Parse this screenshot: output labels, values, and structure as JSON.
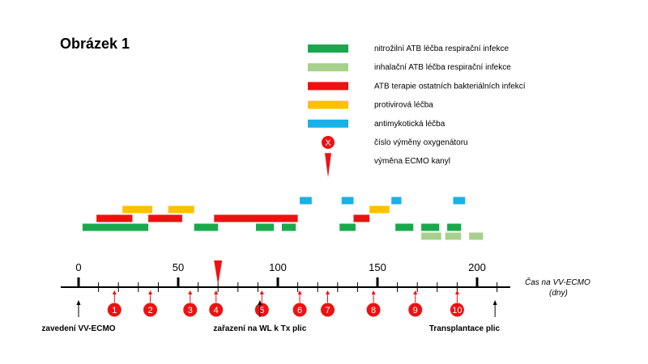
{
  "title": "Obrázek 1",
  "colors": {
    "nitro": "#1aa84c",
    "inhal": "#a8d08d",
    "atb_other": "#ee1111",
    "antiviral": "#ffc000",
    "antifungal": "#1ab0e8",
    "marker": "#ee1111"
  },
  "legend": [
    {
      "kind": "bar",
      "color_key": "nitro",
      "label": "nitrožilní ATB léčba respirační infekce"
    },
    {
      "kind": "bar",
      "color_key": "inhal",
      "label": "inhalační ATB léčba respirační infekce"
    },
    {
      "kind": "bar",
      "color_key": "atb_other",
      "label": "ATB terapie ostatních bakteriálních infekcí"
    },
    {
      "kind": "bar",
      "color_key": "antiviral",
      "label": "protivirová léčba"
    },
    {
      "kind": "bar",
      "color_key": "antifungal",
      "label": "antimykotická léčba"
    },
    {
      "kind": "circle",
      "color_key": "marker",
      "symbol": "X",
      "label": "číslo výměny oxygenátoru"
    },
    {
      "kind": "triangle",
      "color_key": "marker",
      "label": "výměna ECMO kanyl"
    }
  ],
  "axis": {
    "label_line1": "Čas na VV-ECMO",
    "label_line2": "(dny)",
    "min": -10,
    "max": 215,
    "major_ticks": [
      0,
      50,
      100,
      150,
      200
    ],
    "minor_step": 10
  },
  "chart_data": {
    "type": "timeline",
    "treatments": [
      {
        "color_key": "antifungal",
        "start": 111,
        "end": 117
      },
      {
        "color_key": "antifungal",
        "start": 132,
        "end": 138
      },
      {
        "color_key": "antifungal",
        "start": 157,
        "end": 162
      },
      {
        "color_key": "antifungal",
        "start": 188,
        "end": 194
      },
      {
        "color_key": "antiviral",
        "start": 22,
        "end": 37
      },
      {
        "color_key": "antiviral",
        "start": 45,
        "end": 58
      },
      {
        "color_key": "antiviral",
        "start": 146,
        "end": 156
      },
      {
        "color_key": "atb_other",
        "start": 9,
        "end": 27
      },
      {
        "color_key": "atb_other",
        "start": 35,
        "end": 52
      },
      {
        "color_key": "atb_other",
        "start": 68,
        "end": 110
      },
      {
        "color_key": "atb_other",
        "start": 138,
        "end": 146
      },
      {
        "color_key": "nitro",
        "start": 2,
        "end": 35
      },
      {
        "color_key": "nitro",
        "start": 58,
        "end": 70
      },
      {
        "color_key": "nitro",
        "start": 89,
        "end": 98
      },
      {
        "color_key": "nitro",
        "start": 102,
        "end": 109
      },
      {
        "color_key": "nitro",
        "start": 131,
        "end": 139
      },
      {
        "color_key": "nitro",
        "start": 159,
        "end": 168
      },
      {
        "color_key": "nitro",
        "start": 172,
        "end": 181
      },
      {
        "color_key": "nitro",
        "start": 185,
        "end": 192
      },
      {
        "color_key": "inhal",
        "start": 172,
        "end": 182
      },
      {
        "color_key": "inhal",
        "start": 184,
        "end": 192
      },
      {
        "color_key": "inhal",
        "start": 196,
        "end": 203
      }
    ],
    "oxygenator_changes": [
      {
        "num": "1",
        "day": 18
      },
      {
        "num": "2",
        "day": 36
      },
      {
        "num": "3",
        "day": 56
      },
      {
        "num": "4",
        "day": 69
      },
      {
        "num": "5",
        "day": 92
      },
      {
        "num": "6",
        "day": 111
      },
      {
        "num": "7",
        "day": 125
      },
      {
        "num": "8",
        "day": 148
      },
      {
        "num": "9",
        "day": 169
      },
      {
        "num": "10",
        "day": 190
      }
    ],
    "cannula_changes": [
      70
    ],
    "events": [
      {
        "day": 0,
        "label": "zavedení VV-ECMO",
        "anchor": "middle"
      },
      {
        "day": 91,
        "label": "zařazení na WL k Tx plic",
        "anchor": "middle"
      },
      {
        "day": 209,
        "label": "Transplantace plic",
        "anchor": "end"
      }
    ]
  }
}
